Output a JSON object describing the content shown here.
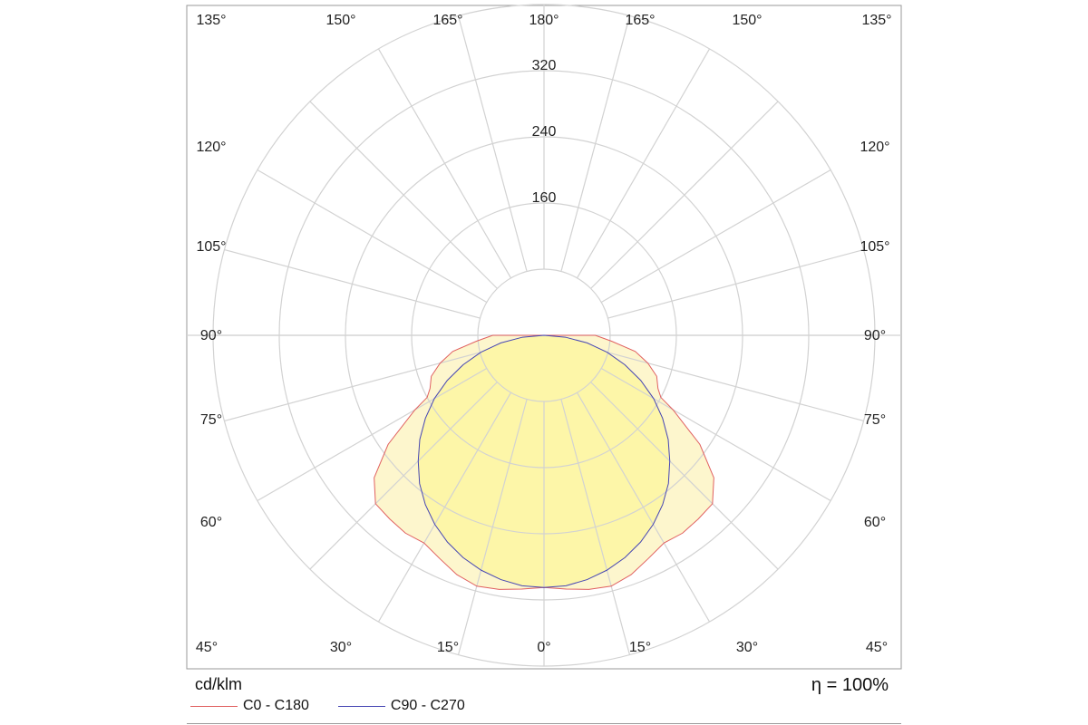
{
  "chart_data": {
    "type": "polar",
    "unit_label": "cd/klm",
    "efficiency": "η = 100%",
    "radial_ticks": [
      80,
      160,
      240,
      320
    ],
    "radial_tick_labels": [
      "160",
      "240",
      "320"
    ],
    "radial_max": 400,
    "angle_labels_top": [
      "135°",
      "150°",
      "165°",
      "180°",
      "165°",
      "150°",
      "135°"
    ],
    "angle_labels_left": [
      "120°",
      "105°",
      "90°",
      "75°",
      "60°"
    ],
    "angle_labels_right": [
      "120°",
      "105°",
      "90°",
      "75°",
      "60°"
    ],
    "angle_labels_bottom": [
      "45°",
      "30°",
      "15°",
      "0°",
      "15°",
      "30°",
      "45°"
    ],
    "legend_position": "bottom-left",
    "series": [
      {
        "name": "C0 - C180",
        "color": "#e06060",
        "fill": "#fdf5c8",
        "angles": [
          0,
          5,
          10,
          15,
          20,
          25,
          30,
          35,
          40,
          45,
          50,
          55,
          60,
          62,
          65,
          70,
          75,
          80,
          85,
          90,
          95
        ],
        "values": [
          305,
          308,
          312,
          314,
          308,
          298,
          290,
          292,
          290,
          288,
          268,
          230,
          180,
          160,
          152,
          145,
          130,
          112,
          82,
          62,
          0
        ]
      },
      {
        "name": "C90 - C270",
        "color": "#4646b4",
        "fill": "#fdf6a4",
        "angles": [
          0,
          5,
          10,
          15,
          20,
          25,
          30,
          35,
          40,
          45,
          50,
          55,
          60,
          65,
          70,
          75,
          80,
          85,
          90
        ],
        "values": [
          305,
          304,
          300,
          294,
          286,
          276,
          264,
          250,
          234,
          215,
          196,
          175,
          153,
          129,
          104,
          79,
          53,
          26,
          0
        ]
      }
    ]
  }
}
